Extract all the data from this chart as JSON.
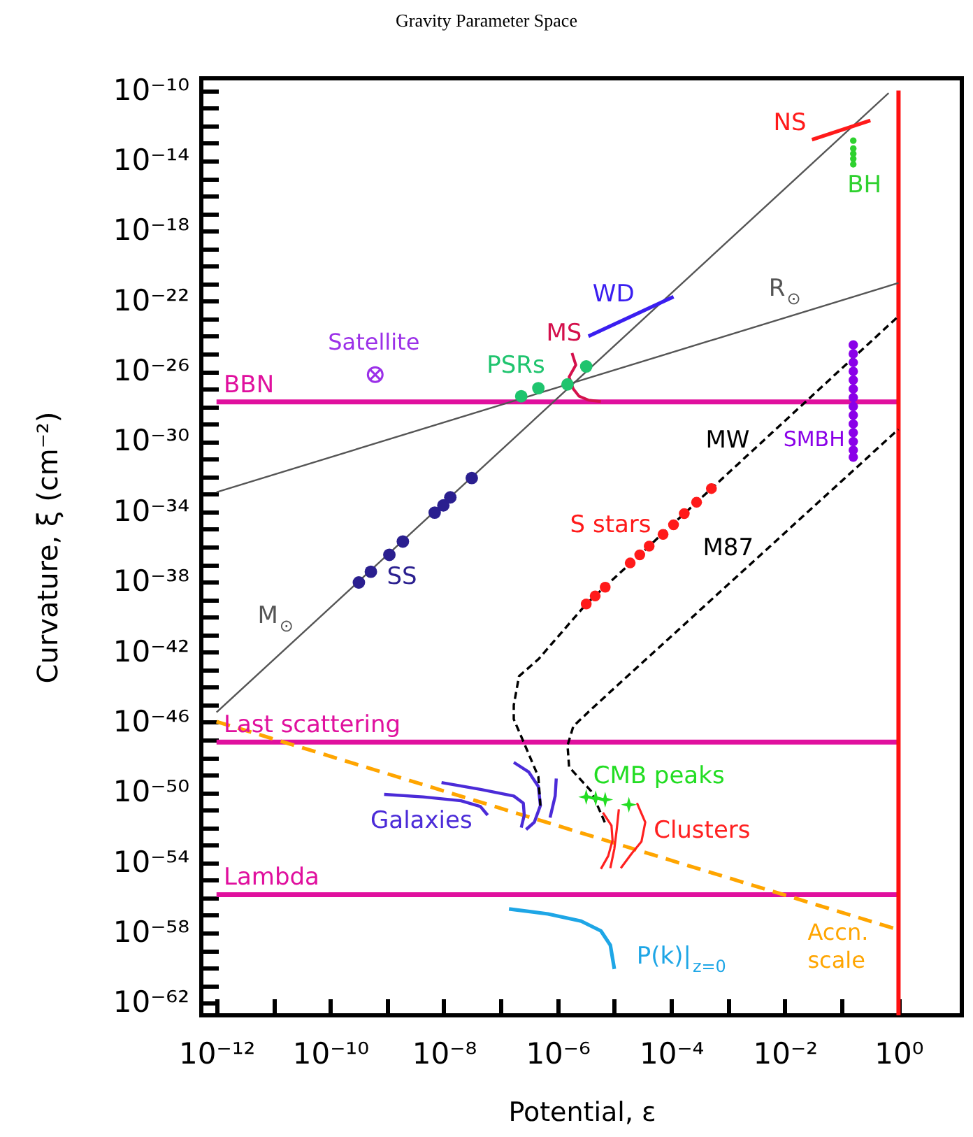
{
  "chart_data": {
    "type": "line",
    "title": "Gravity Parameter Space",
    "xlabel": "Potential, ε",
    "ylabel": "Curvature, ξ (cm⁻²)",
    "log": "xy",
    "xlim": [
      5.4e-13,
      13
    ],
    "ylim": [
      2e-63,
      5e-10
    ],
    "xticks": [
      {
        "value": 1e-12,
        "label": "10⁻¹²"
      },
      {
        "value": 1e-11,
        "label": null
      },
      {
        "value": 1e-10,
        "label": "10⁻¹⁰"
      },
      {
        "value": 1e-09,
        "label": null
      },
      {
        "value": 1e-08,
        "label": "10⁻⁸"
      },
      {
        "value": 1e-07,
        "label": null
      },
      {
        "value": 1e-06,
        "label": "10⁻⁶"
      },
      {
        "value": 1e-05,
        "label": null
      },
      {
        "value": 0.0001,
        "label": "10⁻⁴"
      },
      {
        "value": 0.001,
        "label": null
      },
      {
        "value": 0.01,
        "label": "10⁻²"
      },
      {
        "value": 0.1,
        "label": null
      },
      {
        "value": 1,
        "label": "10⁰"
      }
    ],
    "yticks": [
      {
        "value": 1e-10,
        "label": "10⁻¹⁰"
      },
      {
        "value": 1e-11,
        "label": null
      },
      {
        "value": 1e-12,
        "label": null
      },
      {
        "value": 1e-13,
        "label": null
      },
      {
        "value": 1e-14,
        "label": "10⁻¹⁴"
      },
      {
        "value": 1e-15,
        "label": null
      },
      {
        "value": 1e-16,
        "label": null
      },
      {
        "value": 1e-17,
        "label": null
      },
      {
        "value": 1e-18,
        "label": "10⁻¹⁸"
      },
      {
        "value": 1e-19,
        "label": null
      },
      {
        "value": 1e-20,
        "label": null
      },
      {
        "value": 1e-21,
        "label": null
      },
      {
        "value": 1e-22,
        "label": "10⁻²²"
      },
      {
        "value": 1e-23,
        "label": null
      },
      {
        "value": 1e-24,
        "label": null
      },
      {
        "value": 1e-25,
        "label": null
      },
      {
        "value": 1e-26,
        "label": "10⁻²⁶"
      },
      {
        "value": 1e-27,
        "label": null
      },
      {
        "value": 1e-28,
        "label": null
      },
      {
        "value": 1e-29,
        "label": null
      },
      {
        "value": 1e-30,
        "label": "10⁻³⁰"
      },
      {
        "value": 1e-31,
        "label": null
      },
      {
        "value": 1e-32,
        "label": null
      },
      {
        "value": 1e-33,
        "label": null
      },
      {
        "value": 1e-34,
        "label": "10⁻³⁴"
      },
      {
        "value": 1e-35,
        "label": null
      },
      {
        "value": 1e-36,
        "label": null
      },
      {
        "value": 1e-37,
        "label": null
      },
      {
        "value": 1e-38,
        "label": "10⁻³⁸"
      },
      {
        "value": 1e-39,
        "label": null
      },
      {
        "value": 1e-40,
        "label": null
      },
      {
        "value": 1e-41,
        "label": null
      },
      {
        "value": 1e-42,
        "label": "10⁻⁴²"
      },
      {
        "value": 1e-43,
        "label": null
      },
      {
        "value": 1e-44,
        "label": null
      },
      {
        "value": 1e-45,
        "label": null
      },
      {
        "value": 1e-46,
        "label": "10⁻⁴⁶"
      },
      {
        "value": 1e-47,
        "label": null
      },
      {
        "value": 1e-48,
        "label": null
      },
      {
        "value": 1e-49,
        "label": null
      },
      {
        "value": 1e-50,
        "label": "10⁻⁵⁰"
      },
      {
        "value": 1e-51,
        "label": null
      },
      {
        "value": 1e-52,
        "label": null
      },
      {
        "value": 1e-53,
        "label": null
      },
      {
        "value": 1e-54,
        "label": "10⁻⁵⁴"
      },
      {
        "value": 1e-55,
        "label": null
      },
      {
        "value": 1e-56,
        "label": null
      },
      {
        "value": 1e-57,
        "label": null
      },
      {
        "value": 1e-58,
        "label": "10⁻⁵⁸"
      },
      {
        "value": 1e-59,
        "label": null
      },
      {
        "value": 1e-60,
        "label": null
      },
      {
        "value": 1e-61,
        "label": null
      },
      {
        "value": 1e-62,
        "label": "10⁻⁶²"
      }
    ],
    "ref_lines": [
      {
        "axis": "y",
        "value": 1.8e-28,
        "label": "BBN",
        "color": "#e0109e"
      },
      {
        "axis": "y",
        "value": 7.4e-48,
        "label": "Last scattering",
        "color": "#e0109e"
      },
      {
        "axis": "y",
        "value": 1.5e-56,
        "label": "Lambda",
        "color": "#e0109e"
      },
      {
        "axis": "x",
        "value": 1,
        "color": "#ff1010"
      }
    ],
    "series": [
      {
        "name": "M$_{⊙}$",
        "color": "#555555",
        "x": [
          1e-12,
          0.67
        ],
        "values": [
          3.7e-46,
          7.2e-11
        ]
      },
      {
        "name": "R$_{⊙}$",
        "color": "#555555",
        "x": [
          1e-12,
          1
        ],
        "values": [
          1.3e-33,
          1.1e-21
        ]
      },
      {
        "name": "Accn. scale",
        "line_style": "dashed",
        "color": "#ffa500",
        "x": [
          1e-12,
          1
        ],
        "values": [
          1.1e-46,
          1.5e-58
        ]
      },
      {
        "name": "Galaxies",
        "color": "#4b2bd8",
        "x": [
          8.9e-10,
          4.3e-09,
          2e-08,
          4.4e-08,
          5.9e-08
        ],
        "values": [
          7.8e-51,
          5.6e-51,
          3.4e-51,
          1.6e-51,
          5.1e-52
        ]
      },
      {
        "color": "#4b2bd8",
        "x": [
          9.1e-09,
          4.4e-08,
          1.7e-07,
          2.5e-07,
          2.6e-07,
          2.3e-07
        ],
        "values": [
          3.7e-50,
          1.5e-50,
          6.3e-51,
          2.5e-51,
          5.1e-52,
          1e-52
        ]
      },
      {
        "color": "#4b2bd8",
        "x": [
          1.7e-07,
          3.1e-07,
          4.6e-07,
          5e-07,
          3.9e-07,
          2.8e-07
        ],
        "values": [
          5.2e-49,
          1.5e-49,
          2.2e-50,
          1.8e-51,
          2e-52,
          7.8e-53
        ]
      },
      {
        "color": "#4b2bd8",
        "x": [
          9.5e-07,
          9.1e-07,
          7.4e-07
        ],
        "values": [
          6.3e-50,
          6.3e-51,
          3.7e-52
        ]
      },
      {
        "name": "Clusters",
        "color": "#ff2020",
        "x": [
          2.5e-05,
          3.5e-05,
          3e-05,
          2e-05,
          1.3e-05
        ],
        "values": [
          2.5e-51,
          2e-52,
          1.6e-53,
          3.2e-54,
          4.9e-55
        ]
      },
      {
        "color": "#ff2020",
        "x": [
          6.3e-06,
          8.9e-06,
          9.3e-06,
          7.8e-06,
          5.8e-06
        ],
        "values": [
          7.1e-52,
          1.3e-52,
          1.9e-53,
          2.4e-54,
          4.4e-55
        ]
      },
      {
        "color": "#ff2020",
        "x": [
          1.2e-05,
          1.1e-05,
          1e-05,
          8.5e-06
        ],
        "values": [
          1.1e-51,
          7.6e-53,
          6.2e-54,
          4.9e-55
        ]
      },
      {
        "name": "MW",
        "line_style": "dashed",
        "color": "#000000",
        "x": [
          5e-07,
          4.6e-07,
          2.8e-07,
          1.7e-07,
          1.7e-07,
          2.1e-07,
          4.6e-07,
          3.2e-06,
          1
        ],
        "values": [
          1.8e-51,
          7.9e-50,
          3.5e-48,
          1.5e-46,
          9.5e-46,
          4.2e-44,
          3.9e-43,
          5.5e-40,
          1.4e-23
        ]
      },
      {
        "name": "M87",
        "line_style": "dashed",
        "color": "#000000",
        "x": [
          6.8e-06,
          3.9e-06,
          1.6e-06,
          1.5e-06,
          1.9e-06,
          4.7e-06,
          1
        ],
        "values": [
          2e-52,
          1.2e-50,
          2.8e-49,
          4.8e-48,
          6e-47,
          9.5e-46,
          5e-30
        ]
      },
      {
        "name": "P(k)|$_{z=0}$",
        "color": "#1ea6e6",
        "x": [
          1.4e-07,
          6.8e-07,
          2.6e-06,
          5.8e-06,
          8.5e-06,
          1e-05
        ],
        "values": [
          2.3e-57,
          1.2e-57,
          4.7e-58,
          1.3e-58,
          2e-59,
          8.7e-61
        ]
      },
      {
        "name": "NS",
        "color": "#ff1a1a",
        "x": [
          0.03,
          0.32
        ],
        "values": [
          1.6e-13,
          2e-12
        ]
      },
      {
        "name": "WD",
        "color": "#3a1ef0",
        "x": [
          3.5e-06,
          0.00011
        ],
        "values": [
          1e-24,
          1.8e-22
        ]
      },
      {
        "name": "MS",
        "color": "#d4104c",
        "x": [
          1.8e-06,
          2.1e-06,
          1.6e-06,
          1.9e-06,
          2.4e-06,
          3.5e-06,
          5.8e-06
        ],
        "values": [
          1.1e-25,
          2.3e-26,
          4.8e-27,
          9.8e-28,
          3.8e-28,
          2.3e-28,
          1.9e-28
        ]
      },
      {
        "name": "SS",
        "type": "scatter",
        "marker": "circle",
        "color": "#2a1f8f",
        "x": [
          3.2e-10,
          5.2e-10,
          1.1e-09,
          1.9e-09,
          6.9e-09,
          9.8e-09,
          1.3e-08,
          3.1e-08
        ],
        "values": [
          9.3e-39,
          3.8e-38,
          3.5e-37,
          2e-36,
          8.9e-35,
          2.3e-34,
          6.6e-34,
          8.3e-33
        ]
      },
      {
        "name": "S stars",
        "type": "scatter",
        "marker": "circle",
        "color": "#ff1a1a",
        "x": [
          3.2e-06,
          4.6e-06,
          6.9e-06,
          1.9e-05,
          2.8e-05,
          4.1e-05,
          7.2e-05,
          0.00011,
          0.00017,
          0.00028,
          0.00051
        ],
        "values": [
          5.5e-40,
          1.6e-39,
          5e-39,
          1.2e-37,
          3.5e-37,
          1.1e-36,
          5.1e-36,
          1.8e-35,
          7.8e-35,
          3.5e-34,
          2.1e-33
        ]
      },
      {
        "name": "PSRs",
        "type": "scatter",
        "marker": "circle",
        "color": "#1fc46e",
        "x": [
          2.3e-07,
          4.6e-07,
          1.5e-06,
          3.2e-06
        ],
        "values": [
          3.8e-28,
          1.1e-27,
          1.8e-27,
          1.9e-26
        ]
      },
      {
        "name": "Satellite",
        "type": "scatter",
        "marker": "cross",
        "color": "#9b30e8",
        "x": [
          6.2e-10
        ],
        "values": [
          6.5e-27
        ]
      },
      {
        "name": "BH",
        "type": "scatter",
        "marker": "circle",
        "color": "#2ed12e",
        "x": [
          0.16,
          0.16,
          0.16,
          0.16,
          0.16
        ],
        "values": [
          1.4e-13,
          5e-14,
          2.5e-14,
          1.3e-14,
          6.3e-15
        ]
      },
      {
        "name": "SMBH",
        "type": "scatter",
        "marker": "circle",
        "color": "#8a00e8",
        "x": [
          0.16,
          0.16,
          0.16,
          0.16,
          0.16,
          0.16,
          0.16,
          0.16,
          0.16,
          0.16,
          0.16,
          0.16,
          0.16,
          0.16
        ],
        "values": [
          3.2e-25,
          1e-25,
          3.2e-26,
          1e-26,
          3.2e-27,
          1e-27,
          3.2e-28,
          1e-28,
          3.2e-29,
          1e-29,
          3.2e-30,
          1e-30,
          3.2e-31,
          1.3e-31
        ]
      },
      {
        "name": "CMB peaks",
        "type": "scatter",
        "marker": "star",
        "color": "#22dd22",
        "x": [
          3.2e-06,
          4.7e-06,
          6.9e-06,
          1.8e-05
        ],
        "values": [
          5.6e-51,
          4.7e-51,
          3.9e-51,
          2e-51
        ]
      }
    ]
  }
}
